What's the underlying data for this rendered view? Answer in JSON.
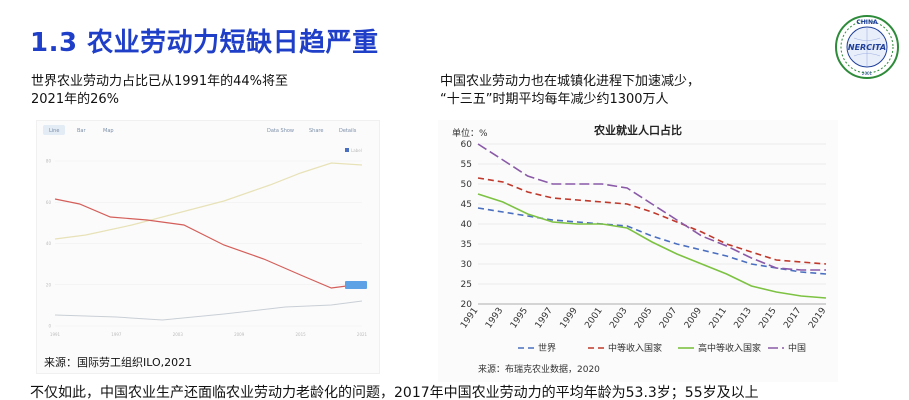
{
  "slide": {
    "title": "1.3 农业劳动力短缺日趋严重",
    "left_text": {
      "line1": "世界农业劳动力占比已从1991年的44%将至",
      "line2": "2021年的26%"
    },
    "right_text": {
      "line1": "中国农业劳动力也在城镇化进程下加速减少，",
      "line2": "“十三五”时期平均每年减少约1300万人"
    },
    "left_source": "来源：国际劳工组织ILO,2021",
    "right_source": "来源：布瑞克农业数据，2020",
    "bottom_text": "不仅如此，中国农业生产还面临农业劳动力老龄化的问题，2017年中国农业劳动力的平均年龄为53.3岁；55岁及以上"
  },
  "logo": {
    "top_text": "CHINA",
    "center_text": "NERCITA",
    "bottom_text": "2001",
    "name": "nercita-logo",
    "color": "#1f3f9a",
    "wreath_color": "#2e8b3a"
  },
  "ilo_panel": {
    "tabs": [
      "Line",
      "Bar",
      "Map"
    ],
    "buttons": [
      "Data Show",
      "Share",
      "Details"
    ],
    "legend": "Label",
    "x_ticks": [
      "1991",
      "1997",
      "2003",
      "2009",
      "2015",
      "2021"
    ],
    "y_ticks": [
      "0",
      "20",
      "40",
      "60",
      "80"
    ]
  },
  "chart_data": {
    "type": "line",
    "title": "农业就业人口占比",
    "ylabel": "单位：%",
    "categories": [
      "1991",
      "1993",
      "1995",
      "1997",
      "1999",
      "2001",
      "2003",
      "2005",
      "2007",
      "2009",
      "2011",
      "2013",
      "2015",
      "2017",
      "2019"
    ],
    "yticks": [
      20,
      25,
      30,
      35,
      40,
      45,
      50,
      55,
      60
    ],
    "ylim": [
      20,
      60
    ],
    "grid": true,
    "legend_position": "bottom",
    "series": [
      {
        "name": "世界",
        "color": "#4a6fc0",
        "dash": "6,4",
        "values": [
          44,
          43,
          42,
          41,
          40.5,
          40,
          39.5,
          37,
          35,
          33.5,
          32,
          30,
          29,
          28,
          27.5
        ]
      },
      {
        "name": "中等收入国家",
        "color": "#c0392b",
        "dash": "6,4",
        "values": [
          51.5,
          50.5,
          48,
          46.5,
          46,
          45.5,
          45,
          43,
          40.5,
          38,
          35,
          33,
          31,
          30.5,
          30
        ]
      },
      {
        "name": "高中等收入国家",
        "color": "#7dc242",
        "dash": "",
        "values": [
          47.5,
          45.5,
          42.5,
          40.5,
          40,
          40,
          39,
          35.5,
          32.5,
          30,
          27.5,
          24.5,
          23,
          22,
          21.5
        ]
      },
      {
        "name": "中国",
        "color": "#8a5aa8",
        "dash": "10,4",
        "values": [
          60,
          56,
          52,
          50,
          50,
          50,
          49,
          45,
          41,
          37,
          34.5,
          31.5,
          29,
          28.5,
          28.5
        ]
      }
    ]
  },
  "colors": {
    "title": "#1f3fc8",
    "ilo_world": "#e8e2b8",
    "ilo_china": "#d45f5a",
    "ilo_low": "#c9cfd6"
  }
}
